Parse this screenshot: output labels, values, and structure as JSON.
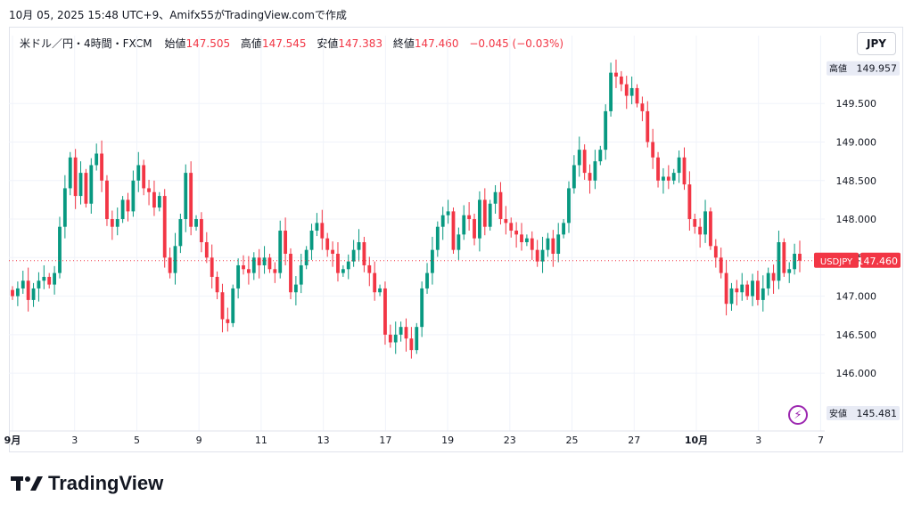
{
  "caption": "10月 05, 2025 15:48 UTC+9、Amifx55がTradingView.comで作成",
  "legend": {
    "symbol": "米ドル／円・4時間・FXCM",
    "open_label": "始値",
    "open": "147.505",
    "high_label": "高値",
    "high": "147.545",
    "low_label": "安値",
    "low": "147.383",
    "close_label": "終値",
    "close": "147.460",
    "change": "−0.045 (−0.03%)"
  },
  "currency_button": "JPY",
  "brand": "TradingView",
  "colors": {
    "up": "#089981",
    "down": "#f23645",
    "grid": "#f0f3fa",
    "axis_text": "#131722"
  },
  "chart_data": {
    "type": "candlestick",
    "y_ticks": [
      "146.000",
      "146.500",
      "147.000",
      "147.500",
      "148.000",
      "148.500",
      "149.000",
      "149.500"
    ],
    "ylim": [
      145.25,
      150.15
    ],
    "x_ticks": [
      "9月",
      "3",
      "5",
      "9",
      "11",
      "13",
      "17",
      "19",
      "23",
      "25",
      "27",
      "10月",
      "3",
      "7"
    ],
    "price_labels": {
      "high": {
        "label": "高値",
        "value": "149.957"
      },
      "low": {
        "label": "安値",
        "value": "145.481"
      },
      "last": {
        "label": "USDJPY",
        "value": "147.460"
      }
    },
    "closes": [
      147.0,
      147.1,
      147.2,
      146.95,
      147.1,
      147.2,
      147.25,
      147.15,
      147.3,
      147.9,
      148.4,
      148.8,
      148.3,
      148.6,
      148.2,
      148.7,
      148.85,
      148.5,
      148.0,
      147.9,
      148.0,
      148.25,
      148.1,
      148.5,
      148.7,
      148.4,
      148.35,
      148.15,
      148.3,
      147.5,
      147.3,
      147.65,
      148.0,
      148.6,
      147.9,
      148.0,
      147.7,
      147.5,
      147.25,
      147.05,
      146.7,
      146.65,
      147.1,
      147.4,
      147.35,
      147.3,
      147.5,
      147.4,
      147.5,
      147.35,
      147.3,
      147.85,
      147.55,
      147.05,
      147.15,
      147.4,
      147.6,
      147.85,
      147.95,
      147.75,
      147.6,
      147.55,
      147.3,
      147.35,
      147.45,
      147.6,
      147.7,
      147.4,
      147.3,
      147.05,
      147.1,
      146.5,
      146.4,
      146.5,
      146.6,
      146.45,
      146.3,
      146.6,
      147.1,
      147.3,
      147.6,
      147.9,
      148.05,
      148.1,
      147.6,
      147.8,
      148.05,
      148.0,
      147.75,
      148.25,
      147.9,
      148.2,
      148.35,
      148.0,
      147.95,
      147.85,
      147.8,
      147.7,
      147.75,
      147.6,
      147.45,
      147.6,
      147.75,
      147.55,
      147.8,
      147.95,
      148.4,
      148.7,
      148.9,
      148.6,
      148.5,
      148.75,
      148.9,
      149.4,
      149.9,
      149.85,
      149.75,
      149.6,
      149.7,
      149.5,
      149.4,
      149.0,
      148.8,
      148.5,
      148.55,
      148.5,
      148.6,
      148.8,
      148.45,
      148.0,
      147.9,
      147.8,
      148.1,
      147.65,
      147.5,
      147.3,
      146.9,
      147.1,
      147.05,
      147.15,
      147.0,
      147.2,
      146.95,
      147.1,
      147.3,
      147.2,
      147.7,
      147.3,
      147.35,
      147.55,
      147.46
    ]
  }
}
